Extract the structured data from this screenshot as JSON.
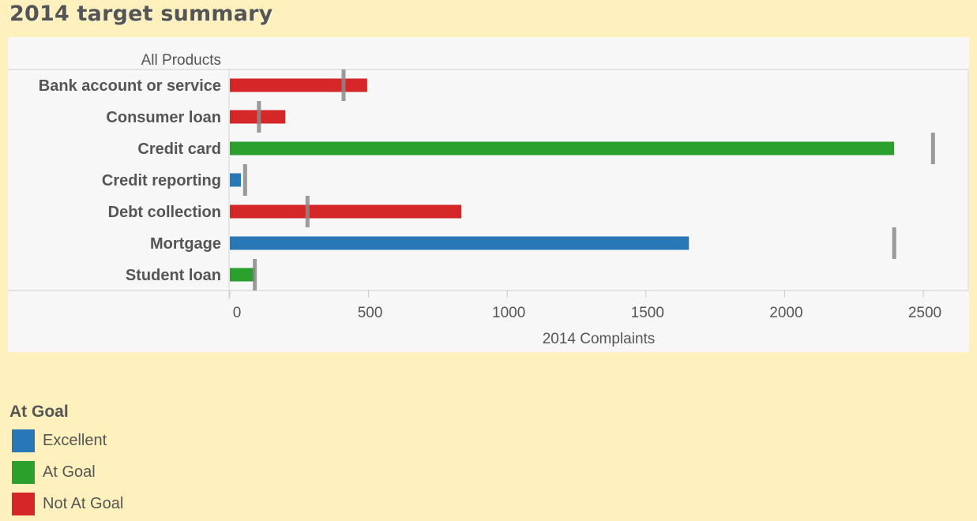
{
  "title": "2014 target summary",
  "colors": {
    "Excellent": "#2878b8",
    "At Goal": "#2ca02c",
    "Not At Goal": "#d62728",
    "target_marker": "#8a8a8a"
  },
  "chart_data": {
    "type": "bar",
    "orientation": "horizontal",
    "column_header": "All Products",
    "xlabel": "2014 Complaints",
    "xlim": [
      0,
      2650
    ],
    "xticks": [
      0,
      500,
      1000,
      1500,
      2000,
      2500
    ],
    "categories": [
      "Bank account or service",
      "Consumer loan",
      "Credit card",
      "Credit reporting",
      "Debt collection",
      "Mortgage",
      "Student loan"
    ],
    "values": [
      495,
      200,
      2395,
      40,
      835,
      1655,
      90
    ],
    "targets": [
      410,
      105,
      2535,
      55,
      280,
      2395,
      90
    ],
    "status": [
      "Not At Goal",
      "Not At Goal",
      "At Goal",
      "Excellent",
      "Not At Goal",
      "Excellent",
      "At Goal"
    ]
  },
  "legend": {
    "title": "At Goal",
    "items": [
      "Excellent",
      "At Goal",
      "Not At Goal"
    ]
  }
}
